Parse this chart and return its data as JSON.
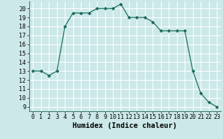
{
  "x": [
    0,
    1,
    2,
    3,
    4,
    5,
    6,
    7,
    8,
    9,
    10,
    11,
    12,
    13,
    14,
    15,
    16,
    17,
    18,
    19,
    20,
    21,
    22,
    23
  ],
  "y": [
    13,
    13,
    12.5,
    13,
    18,
    19.5,
    19.5,
    19.5,
    20,
    20,
    20,
    20.5,
    19,
    19,
    19,
    18.5,
    17.5,
    17.5,
    17.5,
    17.5,
    13,
    10.5,
    9.5,
    9
  ],
  "line_color": "#1a6b5a",
  "marker": "D",
  "marker_size": 2.2,
  "background_color": "#cce8e8",
  "grid_color": "#ffffff",
  "xlabel": "Humidex (Indice chaleur)",
  "xlabel_fontsize": 7.5,
  "ylim": [
    8.5,
    20.8
  ],
  "xlim": [
    -0.5,
    23.5
  ],
  "yticks": [
    9,
    10,
    11,
    12,
    13,
    14,
    15,
    16,
    17,
    18,
    19,
    20
  ],
  "xticks": [
    0,
    1,
    2,
    3,
    4,
    5,
    6,
    7,
    8,
    9,
    10,
    11,
    12,
    13,
    14,
    15,
    16,
    17,
    18,
    19,
    20,
    21,
    22,
    23
  ],
  "tick_fontsize": 6.0,
  "line_width": 0.9
}
